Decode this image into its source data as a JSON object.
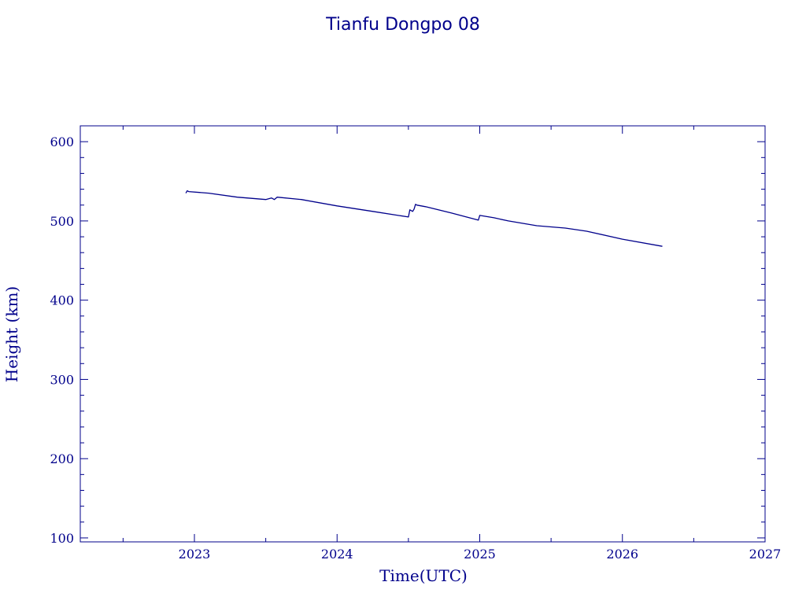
{
  "chart_data": {
    "type": "line",
    "title": "Tianfu Dongpo 08",
    "xlabel": "Time(UTC)",
    "ylabel": "Height (km)",
    "xlim": [
      2022.2,
      2027.0
    ],
    "ylim": [
      95,
      620
    ],
    "x_ticks": [
      2023,
      2024,
      2025,
      2026,
      2027
    ],
    "x_tick_labels": [
      "2023",
      "2024",
      "2025",
      "2026",
      "2027"
    ],
    "y_ticks": [
      100,
      200,
      300,
      400,
      500,
      600
    ],
    "y_tick_labels": [
      "100",
      "200",
      "300",
      "400",
      "500",
      "600"
    ],
    "grid": false,
    "color": "#00008b",
    "series": [
      {
        "x": [
          2022.94,
          2022.95,
          2022.96,
          2023.1,
          2023.3,
          2023.5,
          2023.54,
          2023.56,
          2023.58,
          2023.75,
          2024.0,
          2024.25,
          2024.5,
          2024.51,
          2024.53,
          2024.54,
          2024.55,
          2024.56,
          2024.62,
          2024.8,
          2024.99,
          2025.0,
          2025.1,
          2025.2,
          2025.4,
          2025.6,
          2025.75,
          2026.0,
          2026.28
        ],
        "y": [
          535,
          538,
          537,
          535,
          530,
          527,
          529,
          527,
          530,
          527,
          519,
          512,
          505,
          514,
          512,
          515,
          521,
          520,
          518,
          510,
          501,
          507,
          504,
          500,
          494,
          491,
          487,
          477,
          468
        ]
      }
    ]
  }
}
